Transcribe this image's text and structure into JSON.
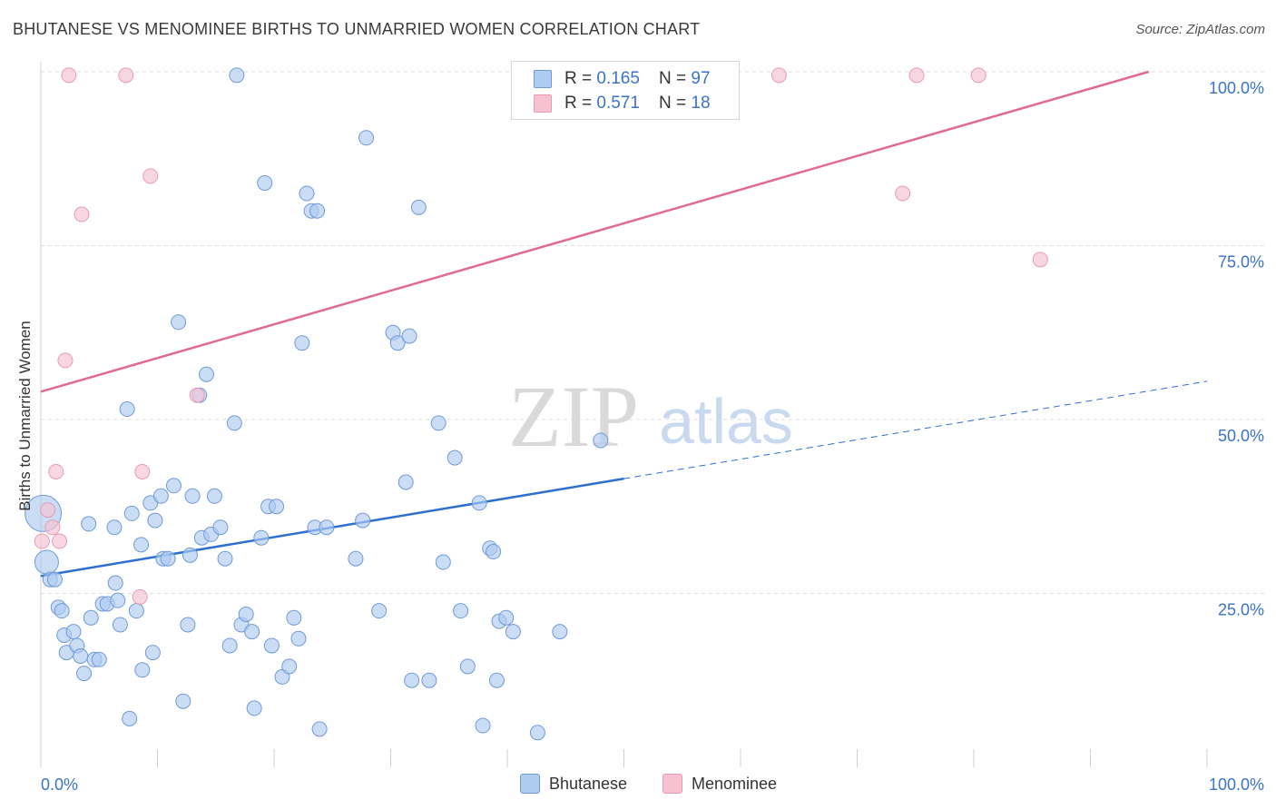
{
  "title": "BHUTANESE VS MENOMINEE BIRTHS TO UNMARRIED WOMEN CORRELATION CHART",
  "source": "Source: ZipAtlas.com",
  "watermark": {
    "zip": "ZIP",
    "atlas": "atlas"
  },
  "colors": {
    "bhutanese_fill": "#aecbf0",
    "bhutanese_stroke": "#6f9ad8",
    "bhutanese_line": "#2b6fd0",
    "menominee_fill": "#f6c2d2",
    "menominee_stroke": "#e99ab2",
    "menominee_line": "#e06a92",
    "grid": "#dedede",
    "axis_text": "#3a73c8"
  },
  "legend_top": {
    "rows": [
      {
        "series": "Bhutanese",
        "r_label": "R = ",
        "r_value": "0.165",
        "n_label": "N = ",
        "n_value": "97"
      },
      {
        "series": "Menominee",
        "r_label": "R = ",
        "r_value": "0.571",
        "n_label": "N = ",
        "n_value": "18"
      }
    ]
  },
  "legend_bottom": [
    "Bhutanese",
    "Menominee"
  ],
  "chart_data": {
    "type": "scatter",
    "title": "BHUTANESE VS MENOMINEE BIRTHS TO UNMARRIED WOMEN CORRELATION CHART",
    "xlabel": "",
    "ylabel": "Births to Unmarried Women",
    "xlim": [
      0,
      100
    ],
    "ylim": [
      0,
      100
    ],
    "x_tick_labels": [
      "0.0%",
      "100.0%"
    ],
    "y_tick_labels": [
      "25.0%",
      "50.0%",
      "75.0%",
      "100.0%"
    ],
    "y_ticks": [
      25,
      50,
      75,
      100
    ],
    "grid": true,
    "legend_position": "top-center",
    "series": [
      {
        "name": "Bhutanese",
        "r": 0.165,
        "n": 97,
        "trend": {
          "x": [
            0,
            50,
            100
          ],
          "y": [
            27.5,
            41.5,
            55.5
          ],
          "solid_until_x": 50
        },
        "points": [
          [
            0.2,
            36.5
          ],
          [
            0.5,
            29.5
          ],
          [
            0.8,
            27
          ],
          [
            1.2,
            27
          ],
          [
            1.5,
            23
          ],
          [
            1.8,
            22.5
          ],
          [
            2,
            19
          ],
          [
            2.2,
            16.5
          ],
          [
            2.8,
            19.5
          ],
          [
            3.1,
            17.5
          ],
          [
            3.4,
            16
          ],
          [
            3.7,
            13.5
          ],
          [
            4.1,
            35
          ],
          [
            4.3,
            21.5
          ],
          [
            4.6,
            15.5
          ],
          [
            5,
            15.5
          ],
          [
            5.3,
            23.5
          ],
          [
            5.7,
            23.5
          ],
          [
            6.3,
            34.5
          ],
          [
            6.4,
            26.5
          ],
          [
            6.6,
            24
          ],
          [
            6.8,
            20.5
          ],
          [
            7.4,
            51.5
          ],
          [
            7.6,
            7
          ],
          [
            7.8,
            36.5
          ],
          [
            8.2,
            22.5
          ],
          [
            8.6,
            32
          ],
          [
            8.7,
            14
          ],
          [
            9.4,
            38
          ],
          [
            9.6,
            16.5
          ],
          [
            9.8,
            35.5
          ],
          [
            10.3,
            39
          ],
          [
            10.5,
            30
          ],
          [
            10.9,
            30
          ],
          [
            11.4,
            40.5
          ],
          [
            11.8,
            64
          ],
          [
            12.2,
            9.5
          ],
          [
            12.6,
            20.5
          ],
          [
            12.8,
            30.5
          ],
          [
            13,
            39
          ],
          [
            13.6,
            53.5
          ],
          [
            13.8,
            33
          ],
          [
            14.2,
            56.5
          ],
          [
            14.6,
            33.5
          ],
          [
            14.9,
            39
          ],
          [
            15.4,
            34.5
          ],
          [
            15.8,
            30
          ],
          [
            16.2,
            17.5
          ],
          [
            16.6,
            49.5
          ],
          [
            16.8,
            99.5
          ],
          [
            17.2,
            20.5
          ],
          [
            17.6,
            22
          ],
          [
            18.1,
            19.5
          ],
          [
            18.3,
            8.5
          ],
          [
            18.9,
            33
          ],
          [
            19.2,
            84
          ],
          [
            19.5,
            37.5
          ],
          [
            19.8,
            17.5
          ],
          [
            20.2,
            37.5
          ],
          [
            20.7,
            13
          ],
          [
            21.3,
            14.5
          ],
          [
            21.7,
            21.5
          ],
          [
            22.1,
            18.5
          ],
          [
            22.4,
            61
          ],
          [
            22.8,
            82.5
          ],
          [
            23.2,
            80
          ],
          [
            23.5,
            34.5
          ],
          [
            23.7,
            80
          ],
          [
            23.9,
            5.5
          ],
          [
            24.5,
            34.5
          ],
          [
            27,
            30
          ],
          [
            27.6,
            35.5
          ],
          [
            27.9,
            90.5
          ],
          [
            29,
            22.5
          ],
          [
            30.2,
            62.5
          ],
          [
            30.6,
            61
          ],
          [
            31.3,
            41
          ],
          [
            31.6,
            62
          ],
          [
            31.8,
            12.5
          ],
          [
            32.4,
            80.5
          ],
          [
            33.3,
            12.5
          ],
          [
            34.1,
            49.5
          ],
          [
            34.5,
            29.5
          ],
          [
            35.5,
            44.5
          ],
          [
            36,
            22.5
          ],
          [
            36.6,
            14.5
          ],
          [
            37.6,
            38
          ],
          [
            37.9,
            6
          ],
          [
            38.5,
            31.5
          ],
          [
            38.8,
            31
          ],
          [
            39.1,
            12.5
          ],
          [
            39.3,
            21
          ],
          [
            39.9,
            21.5
          ],
          [
            40.5,
            19.5
          ],
          [
            42.6,
            5
          ],
          [
            44.5,
            19.5
          ],
          [
            48,
            47
          ]
        ]
      },
      {
        "name": "Menominee",
        "r": 0.571,
        "n": 18,
        "trend": {
          "x": [
            0,
            95
          ],
          "y": [
            54,
            100
          ]
        },
        "points": [
          [
            0.1,
            32.5
          ],
          [
            0.6,
            37
          ],
          [
            1,
            34.5
          ],
          [
            1.3,
            42.5
          ],
          [
            1.6,
            32.5
          ],
          [
            2.1,
            58.5
          ],
          [
            2.4,
            99.5
          ],
          [
            3.5,
            79.5
          ],
          [
            7.3,
            99.5
          ],
          [
            8.7,
            42.5
          ],
          [
            8.5,
            24.5
          ],
          [
            9.4,
            85
          ],
          [
            13.4,
            53.5
          ],
          [
            63.3,
            99.5
          ],
          [
            73.9,
            82.5
          ],
          [
            75.1,
            99.5
          ],
          [
            80.4,
            99.5
          ],
          [
            85.7,
            73
          ]
        ]
      }
    ]
  }
}
